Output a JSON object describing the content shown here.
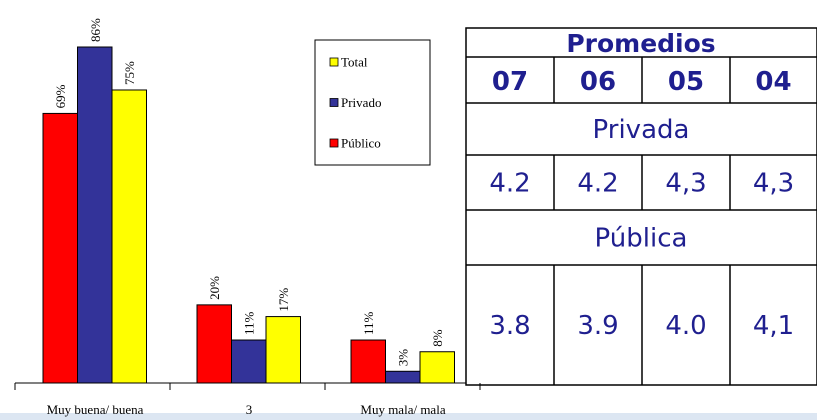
{
  "chart_data": {
    "type": "bar",
    "categories": [
      "Muy buena/ buena",
      "3",
      "Muy mala/ mala"
    ],
    "series": [
      {
        "name": "Público",
        "color": "#ff0000",
        "values": [
          69,
          20,
          11
        ],
        "value_labels": [
          "69%",
          "20%",
          "11%"
        ]
      },
      {
        "name": "Privado",
        "color": "#333399",
        "values": [
          86,
          11,
          3
        ],
        "value_labels": [
          "86%",
          "11%",
          "3%"
        ]
      },
      {
        "name": "Total",
        "color": "#ffff00",
        "values": [
          75,
          17,
          8
        ],
        "value_labels": [
          "75%",
          "17%",
          "8%"
        ]
      }
    ]
  },
  "table": {
    "title": "Promedios",
    "columns": [
      "07",
      "06",
      "05",
      "04"
    ],
    "rows": [
      {
        "label": "Privada",
        "values": [
          "4.2",
          "4.2",
          "4,3",
          "4,3"
        ]
      },
      {
        "label": "Pública",
        "values": [
          "3.8",
          "3.9",
          "4.0",
          "4,1"
        ]
      }
    ]
  }
}
